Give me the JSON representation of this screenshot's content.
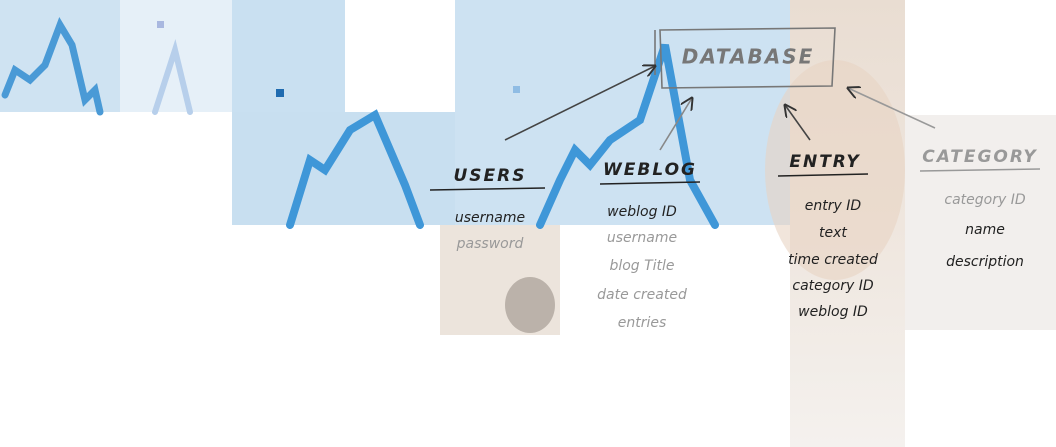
{
  "diagram": {
    "database": {
      "label": "DATABASE"
    },
    "tables": [
      {
        "name": "USERS",
        "fields": [
          "username",
          "password"
        ]
      },
      {
        "name": "WEBLOG",
        "fields": [
          "weblog ID",
          "username",
          "blog Title",
          "date created",
          "entries"
        ]
      },
      {
        "name": "ENTRY",
        "fields": [
          "entry ID",
          "text",
          "time created",
          "category ID",
          "weblog ID"
        ]
      },
      {
        "name": "CATEGORY",
        "fields": [
          "category ID",
          "name",
          "description"
        ]
      }
    ]
  }
}
